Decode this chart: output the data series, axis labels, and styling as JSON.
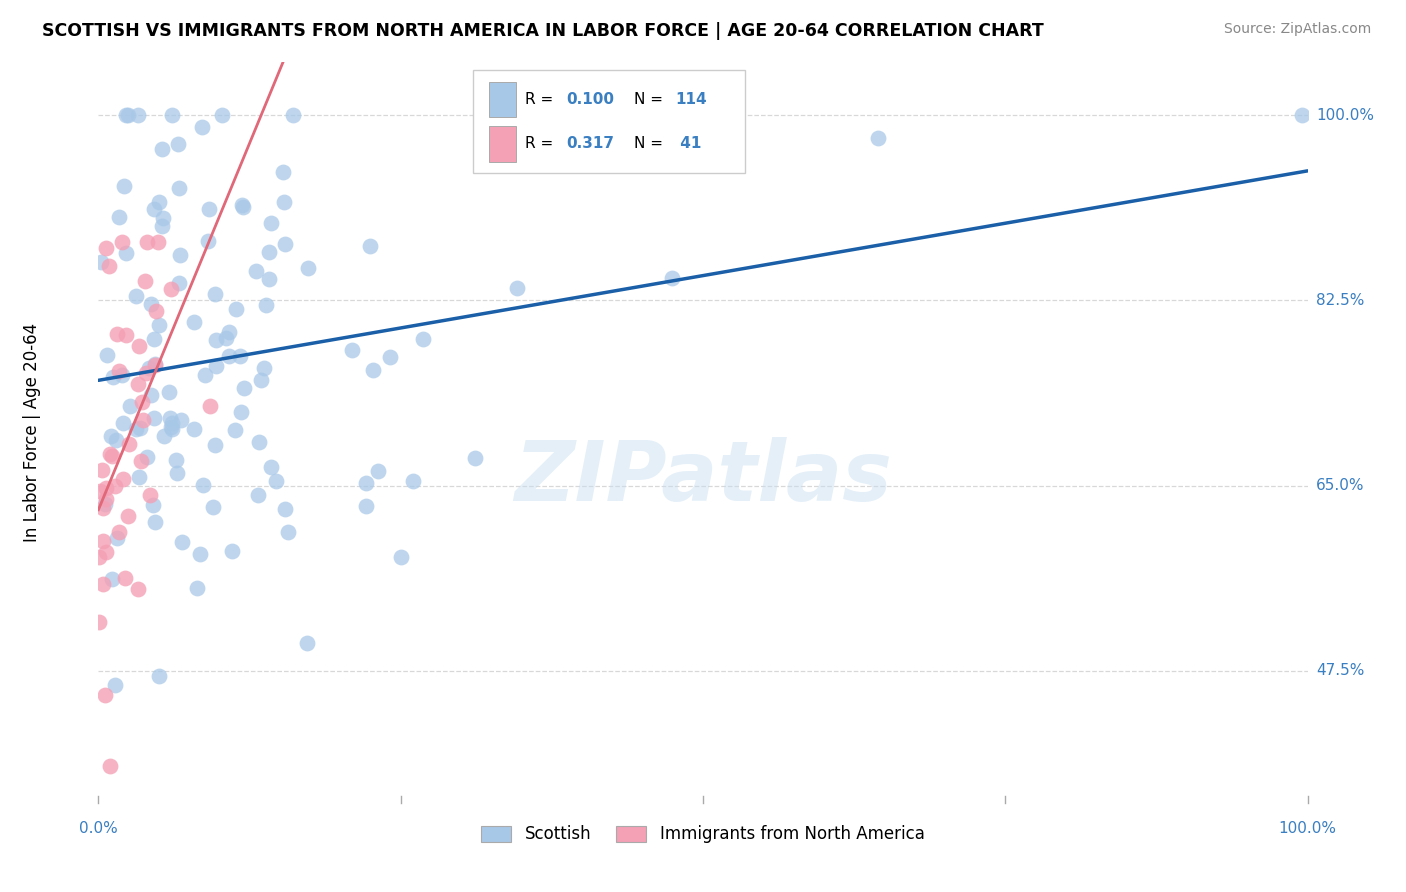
{
  "title": "SCOTTISH VS IMMIGRANTS FROM NORTH AMERICA IN LABOR FORCE | AGE 20-64 CORRELATION CHART",
  "source": "Source: ZipAtlas.com",
  "ylabel": "In Labor Force | Age 20-64",
  "xlim": [
    0.0,
    1.0
  ],
  "ylim": [
    0.35,
    1.05
  ],
  "blue_R": 0.1,
  "blue_N": 114,
  "pink_R": 0.317,
  "pink_N": 41,
  "blue_color": "#a8c8e8",
  "pink_color": "#f4a0b5",
  "blue_line_color": "#1a5fa8",
  "pink_line_color": "#e06878",
  "watermark": "ZIPatlas",
  "background_color": "#ffffff",
  "grid_color": "#d8d8d8",
  "label_color": "#3a7fc1",
  "ytick_vals": [
    0.475,
    0.65,
    0.825,
    1.0
  ],
  "ytick_labels": [
    "47.5%",
    "65.0%",
    "82.5%",
    "100.0%"
  ],
  "xtick_labels": [
    "0.0%",
    "100.0%"
  ],
  "legend_entries": [
    {
      "color": "#a8c8e8",
      "R": "0.100",
      "N": "114"
    },
    {
      "color": "#f4a0b5",
      "R": "0.317",
      "N": "41"
    }
  ],
  "bottom_legend": [
    "Scottish",
    "Immigrants from North America"
  ]
}
